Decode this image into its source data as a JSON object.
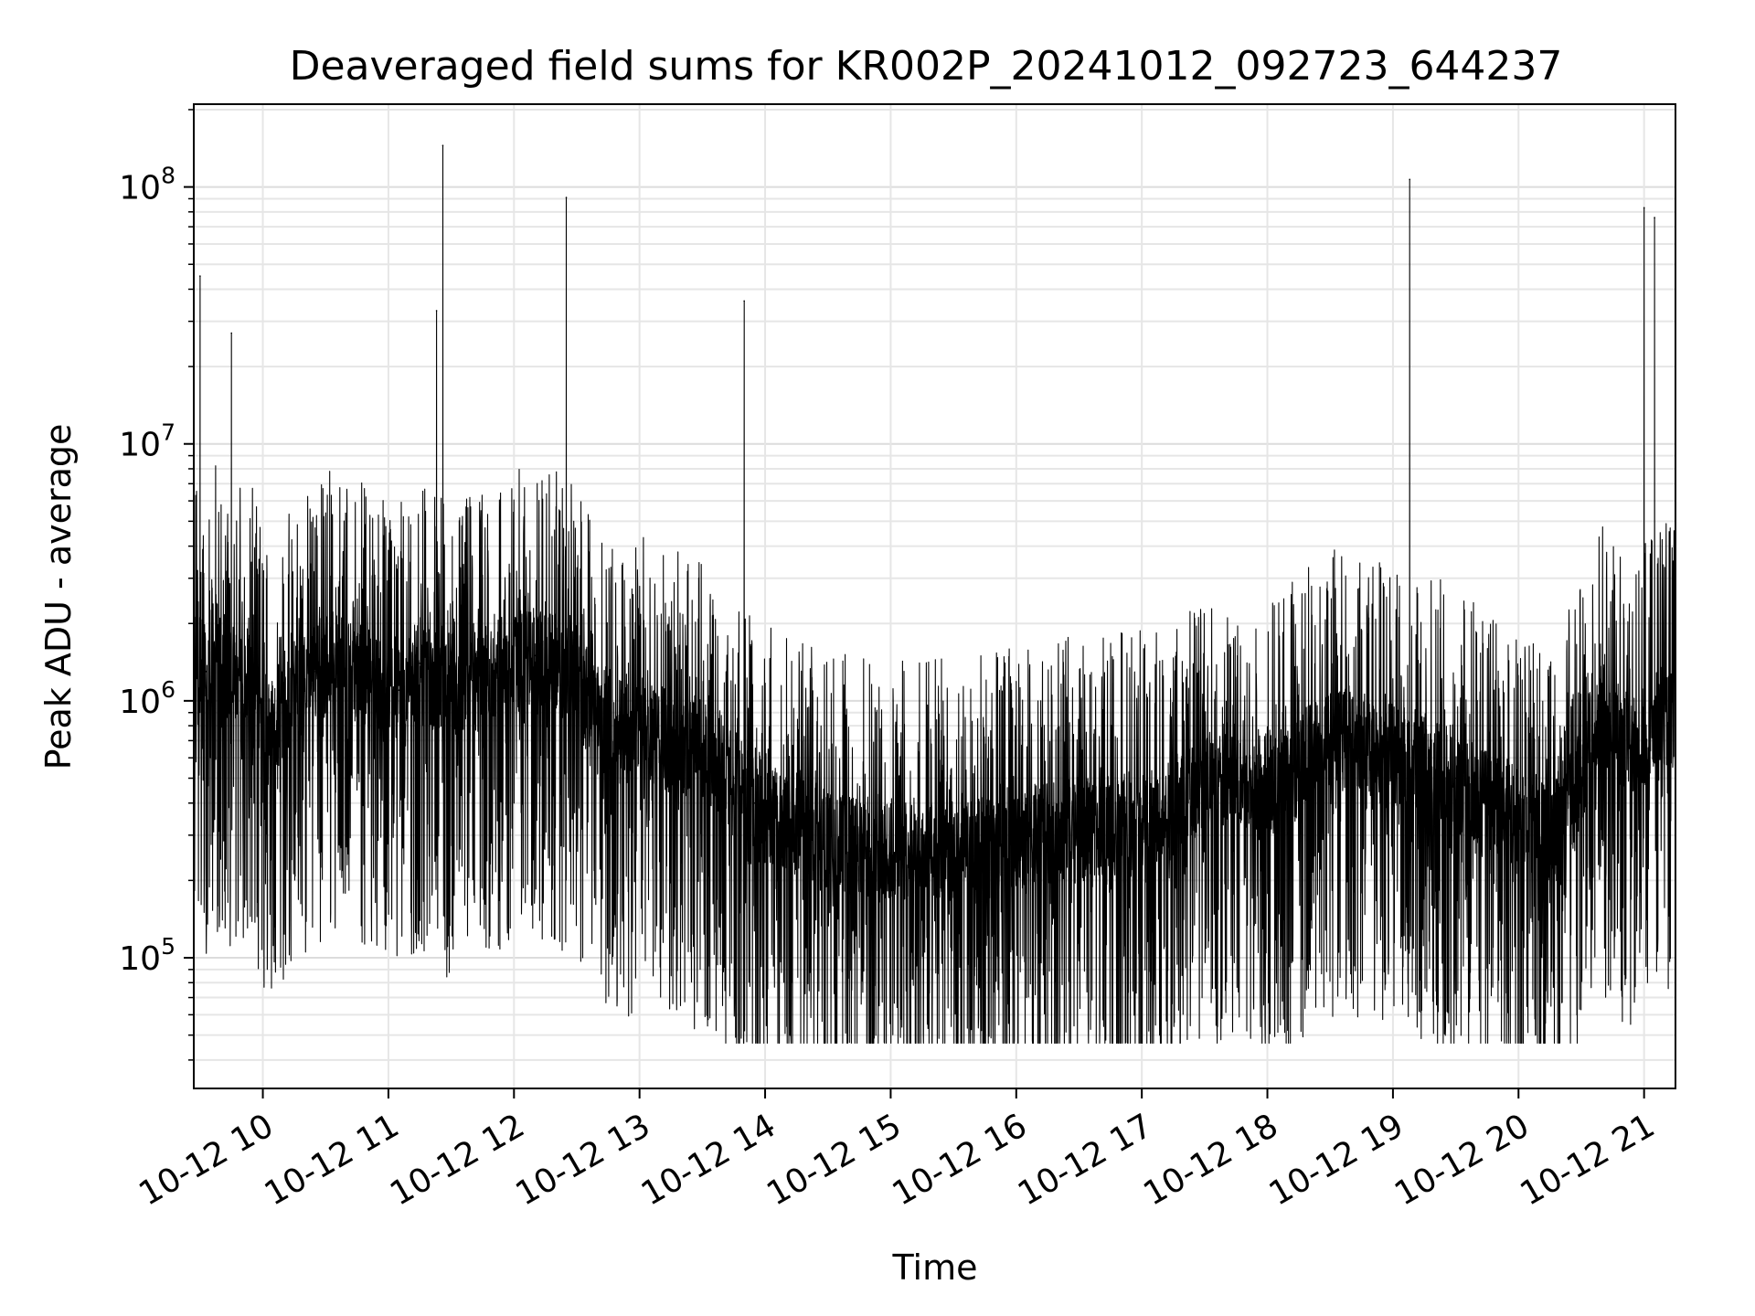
{
  "chart_data": {
    "type": "line",
    "title": "Deaveraged field sums for KR002P_20241012_092723_644237",
    "xlabel": "Time",
    "ylabel": "Peak ADU - average",
    "yscale": "log",
    "ylim": [
      31000,
      210000000
    ],
    "xlim": [
      "2024-10-12 09:27",
      "2024-10-12 21:15"
    ],
    "grid": true,
    "line_color": "#000000",
    "x_ticks": [
      "10-12 10",
      "10-12 11",
      "10-12 12",
      "10-12 13",
      "10-12 14",
      "10-12 15",
      "10-12 16",
      "10-12 17",
      "10-12 18",
      "10-12 19",
      "10-12 20",
      "10-12 21"
    ],
    "y_ticks": [
      {
        "value": 100000,
        "base": "10",
        "exp": "5"
      },
      {
        "value": 1000000,
        "base": "10",
        "exp": "6"
      },
      {
        "value": 10000000,
        "base": "10",
        "exp": "7"
      },
      {
        "value": 100000000,
        "base": "10",
        "exp": "8"
      }
    ],
    "series": [
      {
        "x": [
          "2024-10-12 09:27",
          "2024-10-12 09:30",
          "2024-10-12 09:33",
          "2024-10-12 09:36",
          "2024-10-12 09:40",
          "2024-10-12 09:45",
          "2024-10-12 09:55",
          "2024-10-12 10:00",
          "2024-10-12 10:05",
          "2024-10-12 10:15",
          "2024-10-12 10:25",
          "2024-10-12 10:35",
          "2024-10-12 10:45",
          "2024-10-12 10:55",
          "2024-10-12 11:05",
          "2024-10-12 11:15",
          "2024-10-12 11:23",
          "2024-10-12 11:26",
          "2024-10-12 11:30",
          "2024-10-12 11:40",
          "2024-10-12 11:50",
          "2024-10-12 12:00",
          "2024-10-12 12:10",
          "2024-10-12 12:20",
          "2024-10-12 12:25",
          "2024-10-12 12:30",
          "2024-10-12 12:40",
          "2024-10-12 12:50",
          "2024-10-12 13:00",
          "2024-10-12 13:15",
          "2024-10-12 13:30",
          "2024-10-12 13:45",
          "2024-10-12 13:50",
          "2024-10-12 13:55",
          "2024-10-12 14:10",
          "2024-10-12 14:30",
          "2024-10-12 14:50",
          "2024-10-12 15:10",
          "2024-10-12 15:30",
          "2024-10-12 15:50",
          "2024-10-12 16:10",
          "2024-10-12 16:30",
          "2024-10-12 16:50",
          "2024-10-12 17:10",
          "2024-10-12 17:30",
          "2024-10-12 17:50",
          "2024-10-12 18:10",
          "2024-10-12 18:25",
          "2024-10-12 18:40",
          "2024-10-12 18:55",
          "2024-10-12 19:05",
          "2024-10-12 19:08",
          "2024-10-12 19:15",
          "2024-10-12 19:30",
          "2024-10-12 19:45",
          "2024-10-12 20:00",
          "2024-10-12 20:15",
          "2024-10-12 20:30",
          "2024-10-12 20:40",
          "2024-10-12 20:50",
          "2024-10-12 20:56",
          "2024-10-12 21:00",
          "2024-10-12 21:05",
          "2024-10-12 21:08",
          "2024-10-12 21:15"
        ],
        "y": [
          1500000,
          45000000,
          1300000,
          1800000,
          1400000,
          27000000,
          1200000,
          900000,
          800000,
          1100000,
          1300000,
          1500000,
          1300000,
          1200000,
          1100000,
          1400000,
          33000000,
          145000000,
          1000000,
          1200000,
          1300000,
          1400000,
          1500000,
          1400000,
          91000000,
          1200000,
          900000,
          700000,
          800000,
          700000,
          650000,
          500000,
          36000000,
          400000,
          320000,
          280000,
          260000,
          270000,
          260000,
          280000,
          300000,
          320000,
          330000,
          350000,
          500000,
          450000,
          500000,
          700000,
          700000,
          650000,
          600000,
          107000000,
          600000,
          500000,
          400000,
          350000,
          300000,
          500000,
          900000,
          700000,
          650000,
          83000000,
          76000000,
          900000,
          850000
        ]
      }
    ]
  }
}
